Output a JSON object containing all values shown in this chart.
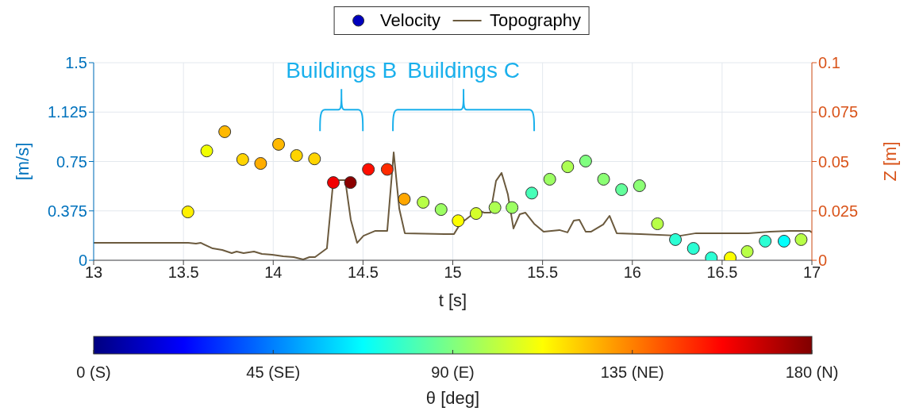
{
  "chart_data": {
    "type": "scatter",
    "xlabel": "t [s]",
    "ylabel": "[m/s]",
    "y2label": "Z [m]",
    "clabel": "θ [deg]",
    "xlim": [
      13,
      17
    ],
    "xticks": [
      13,
      13.5,
      14,
      14.5,
      15,
      15.5,
      16,
      16.5,
      17
    ],
    "ylim": [
      0,
      1.5
    ],
    "yticks": [
      0,
      0.375,
      0.75,
      1.125,
      1.5
    ],
    "y2lim": [
      0,
      0.1
    ],
    "y2ticks": [
      0,
      0.025,
      0.05,
      0.075,
      0.1
    ],
    "clim": [
      0,
      180
    ],
    "cticks": [
      {
        "value": 0,
        "label": "0 (S)"
      },
      {
        "value": 45,
        "label": "45 (SE)"
      },
      {
        "value": 90,
        "label": "90 (E)"
      },
      {
        "value": 135,
        "label": "135 (NE)"
      },
      {
        "value": 180,
        "label": "180 (N)"
      }
    ],
    "grid": true,
    "legend": "top",
    "annotations": [
      "Buildings B",
      "Buildings C"
    ],
    "series": [
      {
        "name": "Velocity",
        "marker": "circle",
        "colors": [
          "#fff100",
          "#f1ff00",
          "#ffb800",
          "#ffd400",
          "#ffad00",
          "#ffb800",
          "#ffd400",
          "#ffd400",
          "#f10000",
          "#8b0000",
          "#ff0e00",
          "#ff2b00",
          "#ffa700",
          "#b8ff47",
          "#9cff63",
          "#fcff00",
          "#d4ff2b",
          "#adff52",
          "#9cff63",
          "#47ffb8",
          "#9cff63",
          "#adff52",
          "#80ff80",
          "#8bff74",
          "#63ff9c",
          "#8bff74",
          "#b8ff47",
          "#2bffd4",
          "#2bffd4",
          "#2bffd4",
          "#fcff00",
          "#b8ff47",
          "#2bffd4",
          "#03fffc",
          "#b8ff47"
        ],
        "x": [
          13.525,
          13.63,
          13.73,
          13.83,
          13.93,
          14.03,
          14.13,
          14.23,
          14.335,
          14.43,
          14.53,
          14.635,
          14.73,
          14.835,
          14.935,
          15.03,
          15.13,
          15.235,
          15.33,
          15.44,
          15.54,
          15.64,
          15.74,
          15.84,
          15.94,
          16.04,
          16.14,
          16.24,
          16.34,
          16.44,
          16.545,
          16.64,
          16.74,
          16.845,
          16.94
        ],
        "values": [
          0.367,
          0.83,
          0.976,
          0.765,
          0.735,
          0.88,
          0.795,
          0.77,
          0.59,
          0.59,
          0.69,
          0.69,
          0.464,
          0.44,
          0.385,
          0.3,
          0.355,
          0.4,
          0.4,
          0.51,
          0.615,
          0.71,
          0.753,
          0.615,
          0.536,
          0.566,
          0.277,
          0.157,
          0.09,
          0.018,
          0.018,
          0.066,
          0.145,
          0.145,
          0.157
        ]
      },
      {
        "name": "Topography",
        "type": "line",
        "axis": "y2",
        "color": "#6b5a3e",
        "marker": "none",
        "x": [
          13.0,
          13.526,
          13.57,
          13.597,
          13.663,
          13.716,
          13.769,
          13.796,
          13.835,
          13.893,
          13.937,
          13.994,
          14.056,
          14.114,
          14.167,
          14.202,
          14.233,
          14.299,
          14.335,
          14.401,
          14.432,
          14.467,
          14.503,
          14.569,
          14.635,
          14.671,
          14.702,
          14.733,
          14.954,
          15.007,
          15.042,
          15.139,
          15.175,
          15.21,
          15.241,
          15.272,
          15.307,
          15.338,
          15.373,
          15.404,
          15.453,
          15.506,
          15.594,
          15.639,
          15.674,
          15.705,
          15.74,
          15.771,
          15.838,
          15.873,
          15.913,
          16.045,
          16.266,
          16.355,
          16.646,
          16.766,
          16.876,
          16.987,
          17.0
        ],
        "values": [
          0.0088,
          0.0088,
          0.0084,
          0.0088,
          0.006,
          0.0052,
          0.0036,
          0.0044,
          0.0036,
          0.0044,
          0.0032,
          0.0028,
          0.002,
          0.0016,
          0.0004,
          0.0016,
          0.0016,
          0.006,
          0.0406,
          0.0406,
          0.0205,
          0.0088,
          0.0124,
          0.0149,
          0.0149,
          0.0546,
          0.0261,
          0.0137,
          0.0133,
          0.0133,
          0.0185,
          0.0253,
          0.0241,
          0.0241,
          0.0402,
          0.0442,
          0.0333,
          0.0161,
          0.0233,
          0.0241,
          0.0185,
          0.0145,
          0.0153,
          0.0141,
          0.0201,
          0.0205,
          0.0145,
          0.0145,
          0.0181,
          0.0225,
          0.0137,
          0.0133,
          0.0124,
          0.0137,
          0.0137,
          0.0145,
          0.0149,
          0.0149,
          0.0141
        ]
      }
    ]
  }
}
